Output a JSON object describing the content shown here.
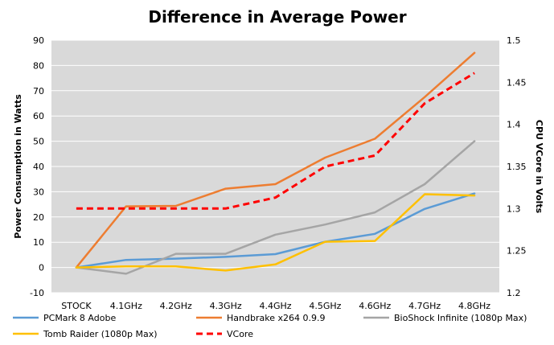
{
  "chart_data": {
    "type": "line",
    "title": "Difference in Average Power",
    "ylabel": "Power Consumption in Watts",
    "y2label": "CPU VCore in Volts",
    "categories": [
      "STOCK",
      "4.1GHz",
      "4.2GHz",
      "4.3GHz",
      "4.4GHz",
      "4.5GHz",
      "4.6GHz",
      "4.7GHz",
      "4.8GHz"
    ],
    "ylim": [
      -10,
      90
    ],
    "yticks": [
      -10,
      0,
      10,
      20,
      30,
      40,
      50,
      60,
      70,
      80,
      90
    ],
    "y2lim": [
      1.2,
      1.5
    ],
    "y2ticks": [
      1.2,
      1.25,
      1.3,
      1.35,
      1.4,
      1.45,
      1.5
    ],
    "grid": true,
    "legend_position": "bottom",
    "series": [
      {
        "name": "PCMark 8 Adobe",
        "axis": "left",
        "color": "#5B9BD5",
        "dash": false,
        "values": [
          0,
          3,
          3.5,
          4.2,
          5.3,
          10.2,
          13.3,
          23.2,
          29.3
        ]
      },
      {
        "name": "Handbrake x264 0.9.9",
        "axis": "left",
        "color": "#ED7D31",
        "dash": false,
        "values": [
          0,
          24.2,
          24.4,
          31.2,
          33,
          43.5,
          51,
          67.5,
          85
        ]
      },
      {
        "name": "BioShock Infinite (1080p Max)",
        "axis": "left",
        "color": "#A5A5A5",
        "dash": false,
        "values": [
          0,
          -2.5,
          5.4,
          5.4,
          13,
          17,
          21.8,
          33,
          50
        ]
      },
      {
        "name": "Tomb Raider (1080p Max)",
        "axis": "left",
        "color": "#FFC000",
        "dash": false,
        "values": [
          0,
          0.4,
          0.4,
          -1.2,
          1.2,
          10.2,
          10.5,
          29,
          28.5
        ]
      },
      {
        "name": "VCore",
        "axis": "right",
        "color": "#FF0000",
        "dash": true,
        "values": [
          1.3,
          1.3,
          1.3,
          1.3,
          1.313,
          1.35,
          1.363,
          1.425,
          1.461
        ]
      }
    ]
  }
}
